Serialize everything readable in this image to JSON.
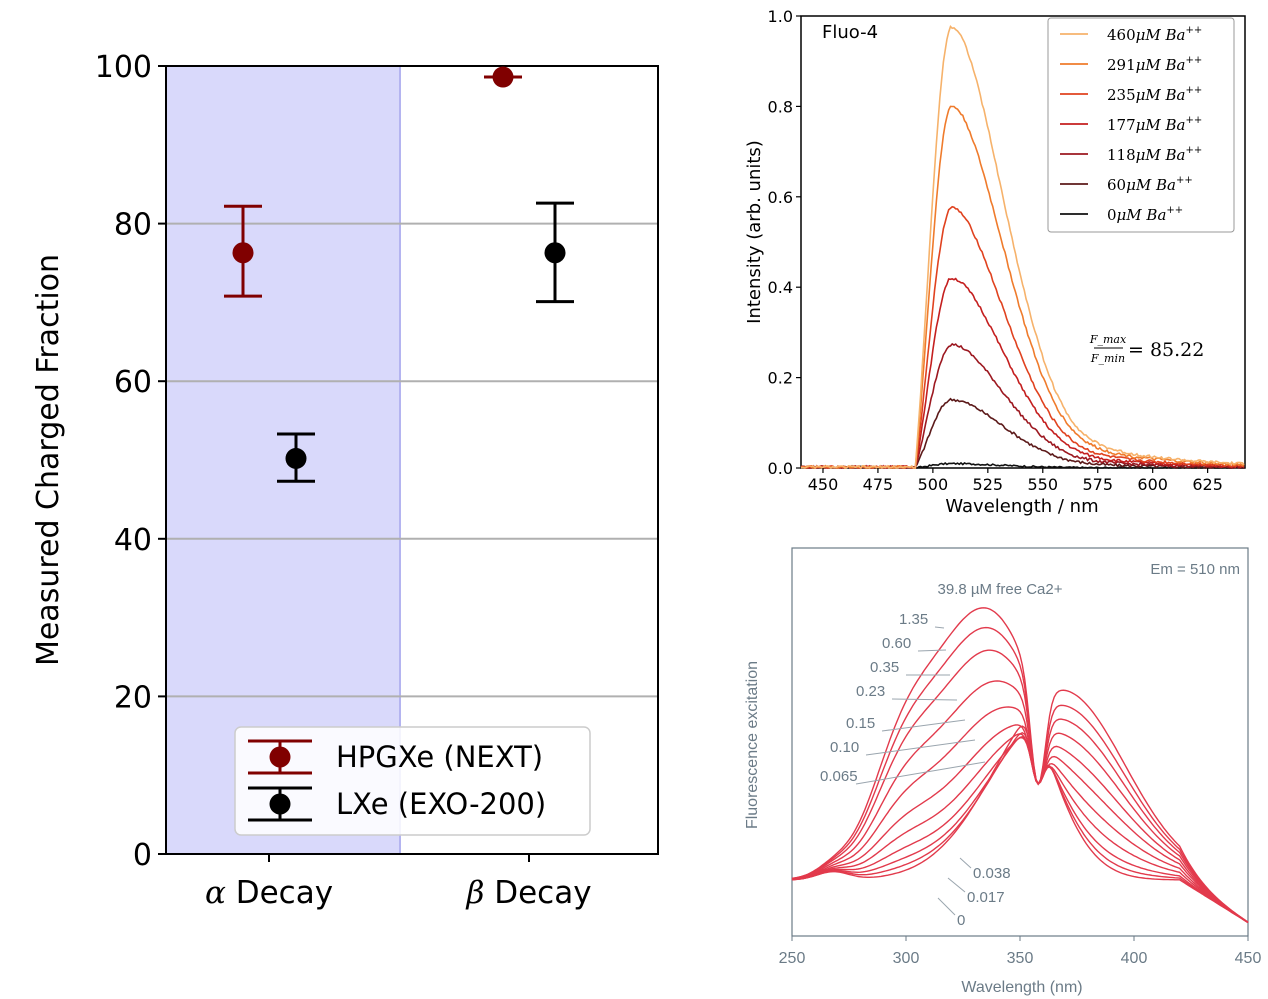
{
  "chart_data": [
    {
      "type": "scatter",
      "panel": "left",
      "categories": [
        "α Decay",
        "β Decay"
      ],
      "ylabel": "Measured Charged Fraction",
      "ylim": [
        0,
        100
      ],
      "yticks": [
        "0",
        "20",
        "40",
        "60",
        "80",
        "100"
      ],
      "shaded_region": "α Decay",
      "legend_position": "lower-center",
      "colors": {
        "hpgxe": "#800000",
        "lxe": "#000000",
        "shade": "#d9d9fb",
        "shade_edge": "#b4b4f0"
      },
      "series": [
        {
          "name": "HPGXe (NEXT)",
          "points": [
            {
              "x": "α Decay",
              "y": 76.3,
              "err_low": 70.8,
              "err_high": 82.2
            },
            {
              "x": "β Decay",
              "y": 98.6,
              "err_low": 98.6,
              "err_high": 98.6
            }
          ]
        },
        {
          "name": "LXe (EXO-200)",
          "points": [
            {
              "x": "α Decay",
              "y": 50.2,
              "err_low": 47.3,
              "err_high": 53.3
            },
            {
              "x": "β Decay",
              "y": 76.3,
              "err_low": 70.1,
              "err_high": 82.6
            }
          ]
        }
      ]
    },
    {
      "type": "line",
      "panel": "top-right",
      "title": "Fluo-4",
      "xlabel": "Wavelength / nm",
      "ylabel": "Intensity (arb. units)",
      "xlim": [
        440,
        642
      ],
      "ylim": [
        0,
        1.0
      ],
      "xticks": [
        "450",
        "475",
        "500",
        "525",
        "550",
        "575",
        "600",
        "625"
      ],
      "yticks": [
        "0.0",
        "0.2",
        "0.4",
        "0.6",
        "0.8",
        "1.0"
      ],
      "legend_position": "top-right",
      "annotation": {
        "numerator": "F_max",
        "denominator": "F_min",
        "value": "= 85.22"
      },
      "series": [
        {
          "name": "460μM Ba++",
          "conc": "460",
          "peak": 1.0,
          "color": "#f6b26b"
        },
        {
          "name": "291μM Ba++",
          "conc": "291",
          "peak": 0.82,
          "color": "#ef7b2c"
        },
        {
          "name": "235μM Ba++",
          "conc": "235",
          "peak": 0.59,
          "color": "#e0421f"
        },
        {
          "name": "177μM Ba++",
          "conc": "177",
          "peak": 0.43,
          "color": "#c41f1f"
        },
        {
          "name": "118μM Ba++",
          "conc": "118",
          "peak": 0.28,
          "color": "#9c1820"
        },
        {
          "name": "60μM Ba++",
          "conc": "60",
          "peak": 0.155,
          "color": "#5c1a1a"
        },
        {
          "name": "0μM Ba++",
          "conc": "0",
          "peak": 0.01,
          "color": "#111111"
        }
      ],
      "shape": {
        "onset": 492,
        "peak_x": 508,
        "tail_end": 642
      }
    },
    {
      "type": "line",
      "panel": "bottom-right",
      "xlabel": "Wavelength (nm)",
      "ylabel": "Fluorescence excitation",
      "xlim": [
        250,
        450
      ],
      "xticks": [
        "250",
        "300",
        "350",
        "400",
        "450"
      ],
      "corner_label": "Em = 510 nm",
      "header_label": "39.8 µM free Ca2+",
      "curve_color": "#e23a4c",
      "isosbestic_x": 358,
      "labels_upper": [
        "1.35",
        "0.60",
        "0.35",
        "0.23",
        "0.15",
        "0.10",
        "0.065"
      ],
      "labels_lower": [
        "0.038",
        "0.017",
        "0"
      ],
      "series": [
        {
          "name": "39.8",
          "peak": 1.0
        },
        {
          "name": "1.35",
          "peak": 0.96
        },
        {
          "name": "0.60",
          "peak": 0.91
        },
        {
          "name": "0.35",
          "peak": 0.83
        },
        {
          "name": "0.23",
          "peak": 0.74
        },
        {
          "name": "0.15",
          "peak": 0.64
        },
        {
          "name": "0.10",
          "peak": 0.55
        },
        {
          "name": "0.065",
          "peak": 0.46
        },
        {
          "name": "0.038",
          "peak": 0.38
        },
        {
          "name": "0.017",
          "peak": 0.31
        },
        {
          "name": "0",
          "peak": 0.24
        }
      ]
    }
  ]
}
